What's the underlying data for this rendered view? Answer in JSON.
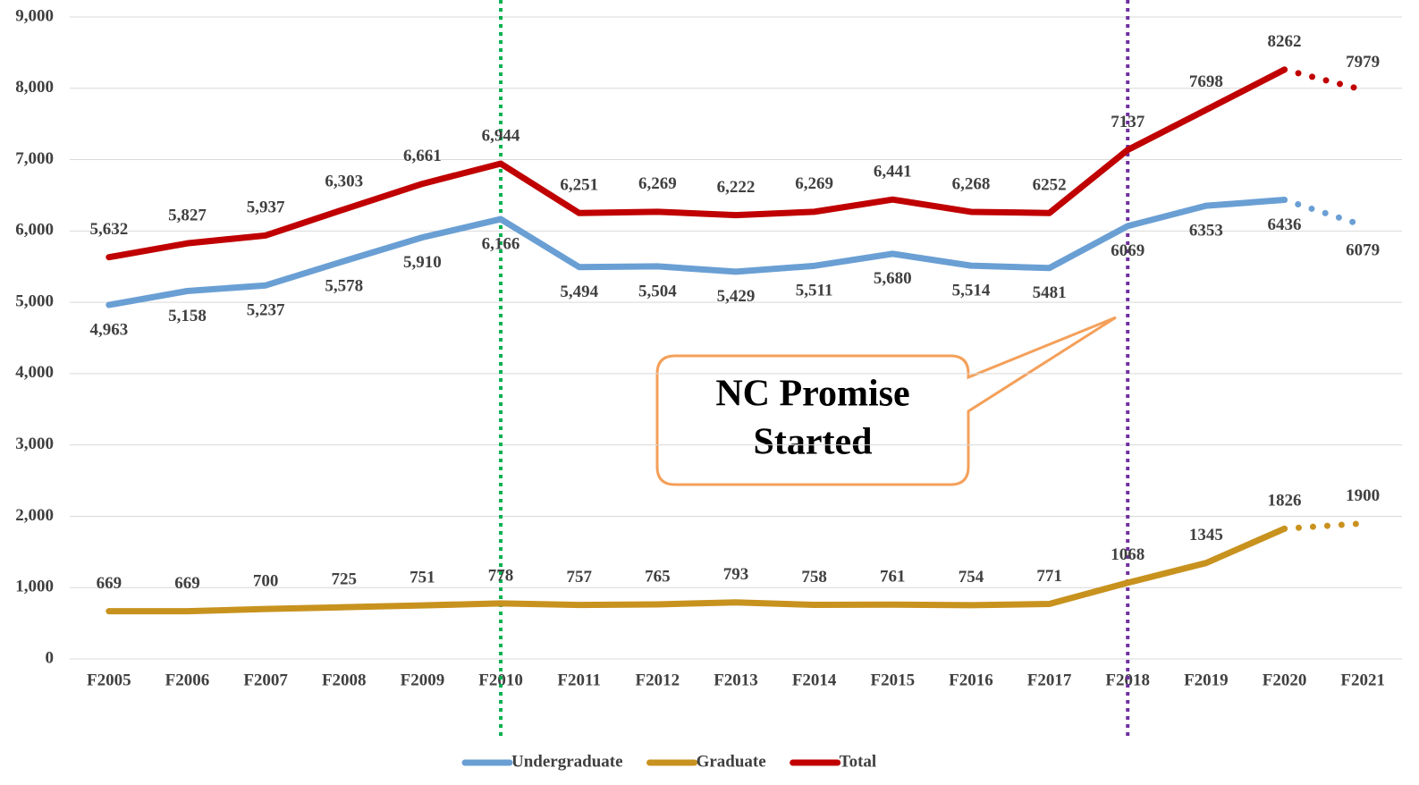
{
  "chart_data": {
    "type": "line",
    "categories": [
      "F2005",
      "F2006",
      "F2007",
      "F2008",
      "F2009",
      "F2010",
      "F2011",
      "F2012",
      "F2013",
      "F2014",
      "F2015",
      "F2016",
      "F2017",
      "F2018",
      "F2019",
      "F2020",
      "F2021"
    ],
    "series": [
      {
        "name": "Undergraduate",
        "color": "#6a9fd4",
        "values": [
          4963,
          5158,
          5237,
          5578,
          5910,
          6166,
          5494,
          5504,
          5429,
          5511,
          5680,
          5514,
          5481,
          6069,
          6353,
          6436,
          6079
        ],
        "value_labels": [
          "4,963",
          "5,158",
          "5,237",
          "5,578",
          "5,910",
          "6,166",
          "5,494",
          "5,504",
          "5,429",
          "5,511",
          "5,680",
          "5,514",
          "5481",
          "6069",
          "6353",
          "6436",
          "6079"
        ],
        "label_side": "below",
        "dotted_from": 15
      },
      {
        "name": "Graduate",
        "color": "#c8921e",
        "values": [
          669,
          669,
          700,
          725,
          751,
          778,
          757,
          765,
          793,
          758,
          761,
          754,
          771,
          1068,
          1345,
          1826,
          1900
        ],
        "value_labels": [
          669,
          669,
          700,
          725,
          751,
          778,
          757,
          765,
          793,
          758,
          761,
          754,
          771,
          1068,
          1345,
          1826,
          1900
        ],
        "label_side": "above",
        "dotted_from": 15
      },
      {
        "name": "Total",
        "color": "#c00000",
        "values": [
          5632,
          5827,
          5937,
          6303,
          6661,
          6944,
          6251,
          6269,
          6222,
          6269,
          6441,
          6268,
          6252,
          7137,
          7698,
          8262,
          7979
        ],
        "value_labels": [
          "5,632",
          "5,827",
          "5,937",
          "6,303",
          "6,661",
          "6,944",
          "6,251",
          "6,269",
          "6,222",
          "6,269",
          "6,441",
          "6,268",
          "6252",
          "7137",
          "7698",
          "8262",
          "7979"
        ],
        "label_side": "above",
        "dotted_from": 15
      }
    ],
    "ylim": [
      0,
      9000
    ],
    "yticks": [
      0,
      {
        "value": 1000,
        "label": "1,000"
      },
      {
        "value": 2000,
        "label": "2,000"
      },
      {
        "value": 3000,
        "label": "3,000"
      },
      {
        "value": 4000,
        "label": "4,000"
      },
      {
        "value": 5000,
        "label": "5,000"
      },
      {
        "value": 6000,
        "label": "6,000"
      },
      {
        "value": 7000,
        "label": "7,000"
      },
      {
        "value": 8000,
        "label": "8,000"
      },
      {
        "value": 9000,
        "label": "9,000"
      }
    ],
    "grid": true,
    "legend": "bottom",
    "vlines": [
      {
        "at": "F2010",
        "color": "#00b050"
      },
      {
        "at": "F2018",
        "color": "#7030a0"
      }
    ],
    "annotation": [
      "NC Promise",
      "Started"
    ]
  }
}
